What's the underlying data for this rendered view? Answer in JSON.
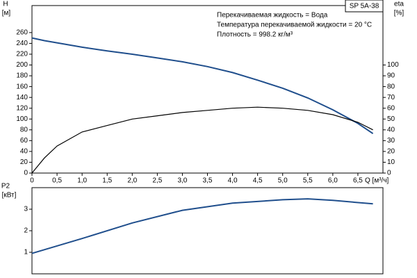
{
  "chart_data": [
    {
      "type": "line",
      "title": "SP 5A-38",
      "annotations": [
        "Перекачиваемая жидкость = Вода",
        "Температура перекачиваемой жидкости = 20 °C",
        "Плотность = 998.2 кг/м³"
      ],
      "ylabel": "H",
      "yunit": "[м]",
      "y2label": "eta",
      "y2unit": "[%]",
      "xlabel": "Q [м³/ч]",
      "x": [
        0,
        0.25,
        0.5,
        1,
        1.5,
        2,
        2.5,
        3,
        3.5,
        4,
        4.5,
        5,
        5.5,
        6,
        6.5,
        6.8
      ],
      "series": [
        {
          "name": "H",
          "color": "#1f4e8c",
          "axis": "y",
          "values": [
            250,
            245,
            241,
            233,
            226,
            220,
            213,
            206,
            197,
            186,
            172,
            157,
            139,
            117,
            92,
            73
          ]
        },
        {
          "name": "eta",
          "color": "#000000",
          "axis": "y2",
          "values": [
            0,
            14,
            25,
            38,
            44,
            50,
            53,
            56,
            58,
            60,
            61,
            60,
            58,
            54,
            47,
            40
          ]
        }
      ],
      "xlim": [
        0,
        7
      ],
      "xticks": [
        0,
        {
          "value": 0.5,
          "label": "0,5"
        },
        {
          "value": 1,
          "label": "1,0"
        },
        {
          "value": 1.5,
          "label": "1,5"
        },
        {
          "value": 2,
          "label": "2,0"
        },
        {
          "value": 2.5,
          "label": "2,5"
        },
        {
          "value": 3,
          "label": "3,0"
        },
        {
          "value": 3.5,
          "label": "3,5"
        },
        {
          "value": 4,
          "label": "4,0"
        },
        {
          "value": 4.5,
          "label": "4,5"
        },
        {
          "value": 5,
          "label": "5,0"
        },
        {
          "value": 5.5,
          "label": "5,5"
        },
        {
          "value": 6,
          "label": "6,0"
        },
        {
          "value": 6.5,
          "label": "6,5"
        }
      ],
      "ylim": [
        0,
        310
      ],
      "yticks": [
        0,
        20,
        40,
        60,
        80,
        100,
        120,
        140,
        160,
        180,
        200,
        220,
        240,
        260
      ],
      "y2lim": [
        0,
        155
      ],
      "y2ticks": [
        0,
        10,
        20,
        30,
        40,
        50,
        60,
        70,
        80,
        90,
        100
      ]
    },
    {
      "type": "line",
      "ylabel": "P2",
      "yunit": "[кВт]",
      "x": [
        0,
        1,
        2,
        3,
        4,
        5,
        5.5,
        6,
        6.8
      ],
      "series": [
        {
          "name": "P2",
          "color": "#1f4e8c",
          "axis": "y",
          "values": [
            0.95,
            1.64,
            2.36,
            2.95,
            3.28,
            3.44,
            3.48,
            3.41,
            3.25
          ]
        }
      ],
      "xlim": [
        0,
        7
      ],
      "ylim": [
        0,
        4
      ],
      "yticks": [
        1,
        2,
        3
      ]
    }
  ]
}
